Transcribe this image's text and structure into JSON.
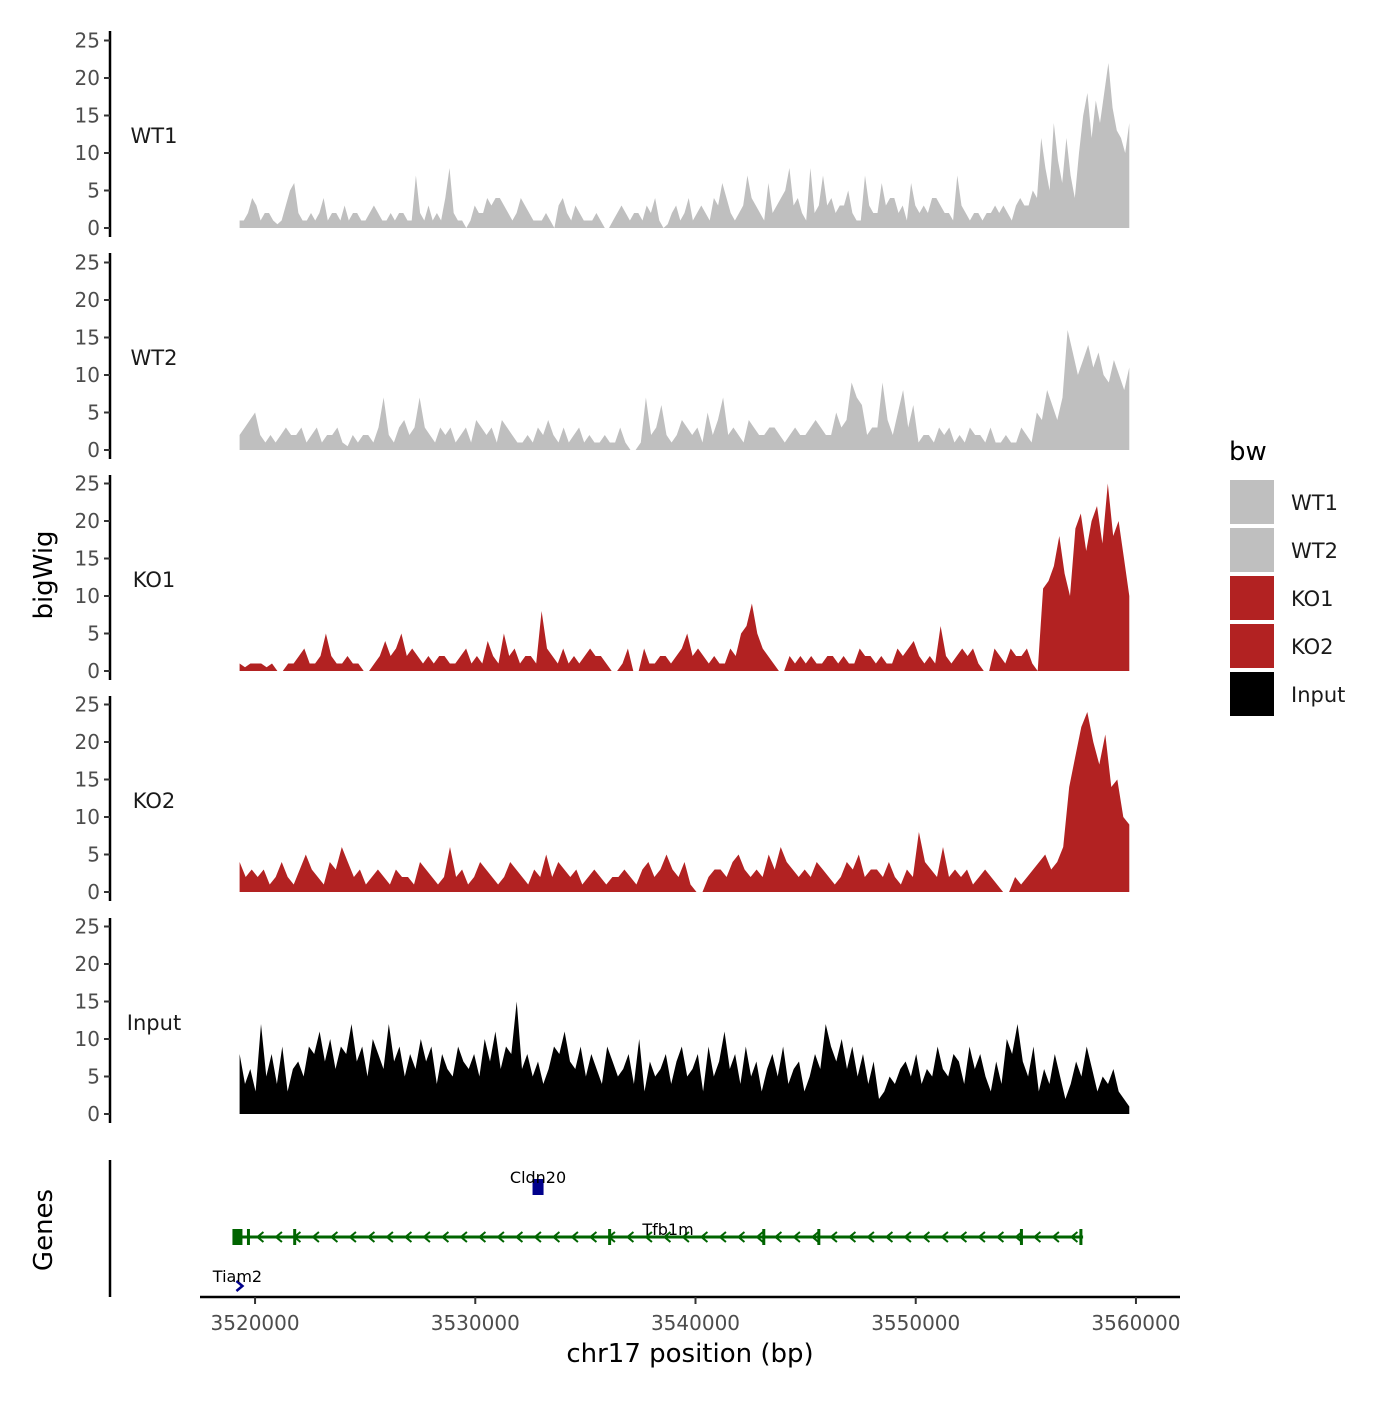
{
  "chart_data": {
    "type": "area",
    "title": "",
    "ylabel": "bigWig",
    "xlabel": "chr17 position (bp)",
    "gene_panel_label": "Genes",
    "xlim": [
      3517500,
      3562000
    ],
    "ylim": [
      0,
      25
    ],
    "x_ticks": [
      3520000,
      3530000,
      3540000,
      3550000,
      3560000
    ],
    "x_tick_labels": [
      "3520000",
      "3530000",
      "3540000",
      "3550000",
      "3560000"
    ],
    "y_ticks": [
      0,
      5,
      10,
      15,
      20,
      25
    ],
    "y_tick_labels": [
      "0",
      "5",
      "10",
      "15",
      "20",
      "25"
    ],
    "x_start": 3519300,
    "x_end": 3559700,
    "legend": {
      "title": "bw",
      "entries": [
        {
          "label": "WT1",
          "color": "#bfbfbf"
        },
        {
          "label": "WT2",
          "color": "#bfbfbf"
        },
        {
          "label": "KO1",
          "color": "#b22222"
        },
        {
          "label": "KO2",
          "color": "#b22222"
        },
        {
          "label": "Input",
          "color": "#000000"
        }
      ]
    },
    "series": [
      {
        "name": "WT1",
        "color": "#bfbfbf",
        "values": [
          1,
          1,
          2,
          4,
          3,
          1,
          2,
          2,
          1,
          0.5,
          1,
          3,
          5,
          6,
          2,
          1,
          1,
          2,
          1,
          2,
          4,
          1,
          2,
          2,
          1,
          3,
          1,
          2,
          2,
          1,
          1,
          2,
          3,
          2,
          1,
          1,
          2,
          1,
          2,
          2,
          1,
          1,
          7,
          2,
          1,
          3,
          1,
          2,
          1,
          4,
          8,
          2,
          1,
          1,
          0,
          1,
          3,
          2,
          2,
          4,
          3,
          4,
          4,
          3,
          2,
          1,
          2,
          4,
          3,
          2,
          1,
          1,
          1,
          2,
          1,
          0,
          3,
          4,
          2,
          1,
          3,
          2,
          1,
          1,
          1,
          2,
          1,
          0,
          0,
          1,
          2,
          3,
          2,
          1,
          2,
          2,
          1,
          3,
          2,
          4,
          1,
          0,
          0.5,
          2,
          3,
          1,
          2,
          4,
          1,
          2,
          3,
          2,
          1,
          4,
          3,
          6,
          4,
          2,
          1,
          2,
          3,
          7,
          4,
          3,
          2,
          1,
          6,
          2,
          3,
          4,
          5,
          8,
          3,
          4,
          2,
          1,
          8,
          2,
          3,
          7,
          3,
          4,
          2,
          3,
          3,
          5,
          2,
          1,
          1,
          7,
          3,
          2,
          2,
          6,
          3,
          4,
          4,
          2,
          3,
          1,
          6,
          3,
          2,
          3,
          2,
          4,
          4,
          3,
          2,
          2,
          1,
          7,
          3,
          2,
          1,
          2,
          2,
          1,
          2,
          2,
          3,
          2,
          3,
          2,
          1,
          3,
          4,
          3,
          3,
          5,
          4,
          12,
          8,
          5,
          14,
          9,
          6,
          12,
          7,
          4,
          10,
          15,
          18,
          12,
          17,
          14,
          18,
          22,
          16,
          13,
          12,
          10,
          14
        ]
      },
      {
        "name": "WT2",
        "color": "#bfbfbf",
        "values": [
          2,
          3,
          4,
          5,
          2,
          1,
          2,
          1,
          2,
          3,
          2,
          2,
          3,
          1,
          2,
          3,
          1,
          2,
          2,
          3,
          1,
          0.5,
          2,
          1,
          2,
          2,
          1,
          3,
          7,
          2,
          1,
          3,
          4,
          2,
          3,
          7,
          3,
          2,
          1,
          3,
          2,
          3,
          1,
          2,
          3,
          1,
          4,
          3,
          2,
          3,
          1,
          4,
          3,
          2,
          1,
          1,
          2,
          1,
          3,
          2,
          4,
          2,
          1,
          3,
          1,
          2,
          3,
          1,
          2,
          1,
          1,
          2,
          1,
          1,
          3,
          1,
          0,
          0,
          1,
          7,
          2,
          3,
          6,
          2,
          1,
          2,
          4,
          3,
          2,
          3,
          1,
          5,
          2,
          4,
          7,
          2,
          3,
          2,
          1,
          4,
          3,
          2,
          2,
          3,
          3,
          2,
          1,
          2,
          3,
          2,
          2,
          3,
          4,
          3,
          2,
          2,
          5,
          3,
          4,
          9,
          7,
          6,
          2,
          3,
          3,
          9,
          4,
          2,
          5,
          8,
          3,
          6,
          1,
          2,
          2,
          1,
          3,
          2,
          3,
          1,
          2,
          1,
          3,
          2,
          2,
          1,
          3,
          1,
          1,
          2,
          1,
          1,
          3,
          2,
          1,
          5,
          4,
          8,
          6,
          4,
          7,
          16,
          13,
          10,
          12,
          14,
          11,
          13,
          10,
          9,
          12,
          10,
          8,
          11
        ]
      },
      {
        "name": "KO1",
        "color": "#b22222",
        "values": [
          1,
          0.5,
          1,
          1,
          1,
          0.5,
          1,
          0,
          0,
          1,
          1,
          2,
          3,
          1,
          1,
          2,
          5,
          2,
          1,
          1,
          2,
          1,
          1,
          0,
          0,
          1,
          2,
          4,
          2,
          3,
          5,
          2,
          3,
          2,
          1,
          2,
          1,
          2,
          2,
          1,
          1,
          2,
          3,
          1,
          2,
          1,
          4,
          2,
          1,
          5,
          2,
          3,
          1,
          2,
          2,
          1,
          8,
          3,
          2,
          1,
          3,
          1,
          2,
          1,
          2,
          3,
          2,
          2,
          1,
          0,
          0,
          1,
          3,
          0,
          0,
          3,
          1,
          1,
          2,
          2,
          1,
          2,
          3,
          5,
          2,
          3,
          2,
          1,
          2,
          1,
          1,
          3,
          2,
          5,
          6,
          9,
          5,
          3,
          2,
          1,
          0,
          0,
          2,
          1,
          2,
          1,
          2,
          1,
          1,
          2,
          2,
          1,
          2,
          1,
          1,
          3,
          2,
          2,
          1,
          2,
          1,
          1,
          3,
          2,
          3,
          4,
          2,
          1,
          2,
          1,
          6,
          2,
          1,
          2,
          3,
          2,
          3,
          1,
          0,
          0,
          3,
          2,
          1,
          3,
          2,
          2,
          3,
          1,
          0,
          11,
          12,
          14,
          18,
          13,
          10,
          19,
          21,
          16,
          20,
          22,
          17,
          25,
          18,
          20,
          15,
          10
        ]
      },
      {
        "name": "KO2",
        "color": "#b22222",
        "values": [
          4,
          2,
          3,
          2,
          3,
          1,
          2,
          4,
          2,
          1,
          3,
          5,
          3,
          2,
          1,
          4,
          3,
          6,
          4,
          2,
          3,
          1,
          2,
          3,
          2,
          1,
          3,
          2,
          2,
          1,
          4,
          3,
          2,
          1,
          2,
          6,
          2,
          3,
          1,
          2,
          4,
          3,
          2,
          1,
          2,
          4,
          3,
          2,
          1,
          3,
          2,
          5,
          2,
          4,
          3,
          2,
          3,
          1,
          2,
          3,
          2,
          1,
          2,
          2,
          3,
          2,
          1,
          3,
          4,
          2,
          3,
          5,
          3,
          2,
          4,
          1,
          0,
          0,
          2,
          3,
          3,
          2,
          4,
          5,
          3,
          2,
          3,
          2,
          5,
          3,
          6,
          4,
          3,
          2,
          3,
          2,
          4,
          3,
          2,
          1,
          2,
          4,
          3,
          5,
          2,
          3,
          3,
          2,
          4,
          2,
          1,
          3,
          2,
          8,
          4,
          3,
          2,
          6,
          2,
          3,
          2,
          3,
          1,
          2,
          3,
          2,
          1,
          0,
          0,
          2,
          1,
          2,
          3,
          4,
          5,
          3,
          4,
          6,
          14,
          18,
          22,
          24,
          20,
          17,
          21,
          14,
          15,
          10,
          9
        ]
      },
      {
        "name": "Input",
        "color": "#000000",
        "values": [
          8,
          4,
          6,
          3,
          12,
          5,
          8,
          4,
          9,
          3,
          6,
          7,
          5,
          9,
          8,
          11,
          7,
          10,
          6,
          9,
          8,
          12,
          7,
          9,
          5,
          10,
          8,
          6,
          12,
          7,
          9,
          5,
          8,
          6,
          10,
          7,
          9,
          4,
          8,
          6,
          5,
          9,
          7,
          6,
          8,
          5,
          10,
          7,
          11,
          6,
          9,
          8,
          15,
          6,
          8,
          5,
          7,
          4,
          6,
          9,
          8,
          11,
          7,
          6,
          9,
          5,
          8,
          6,
          4,
          9,
          7,
          5,
          6,
          8,
          4,
          10,
          3,
          7,
          5,
          6,
          8,
          4,
          7,
          9,
          5,
          6,
          8,
          3,
          9,
          5,
          7,
          11,
          6,
          8,
          4,
          9,
          5,
          7,
          3,
          6,
          8,
          5,
          9,
          4,
          6,
          7,
          3,
          5,
          8,
          6,
          12,
          9,
          7,
          10,
          6,
          9,
          5,
          8,
          4,
          7,
          2,
          3,
          5,
          4,
          6,
          7,
          5,
          8,
          4,
          6,
          5,
          9,
          6,
          5,
          8,
          7,
          4,
          9,
          6,
          8,
          5,
          3,
          7,
          4,
          10,
          8,
          12,
          7,
          5,
          9,
          3,
          6,
          4,
          8,
          5,
          2,
          4,
          7,
          5,
          9,
          6,
          3,
          5,
          4,
          6,
          3,
          2,
          1
        ]
      }
    ],
    "genes": [
      {
        "name": "Cldn20",
        "color": "#00008b",
        "start": 3532600,
        "end": 3533100,
        "strand": "+"
      },
      {
        "name": "Tfb1m",
        "color": "#006400",
        "start": 3519200,
        "end": 3557600,
        "strand": "-",
        "exons": [
          3519200,
          3519700,
          3521800,
          3536100,
          3543100,
          3545600,
          3554800,
          3557500
        ]
      },
      {
        "name": "Tiam2",
        "color": "#00008b",
        "start": 3519200,
        "end": 3519600,
        "strand": "+"
      }
    ]
  }
}
